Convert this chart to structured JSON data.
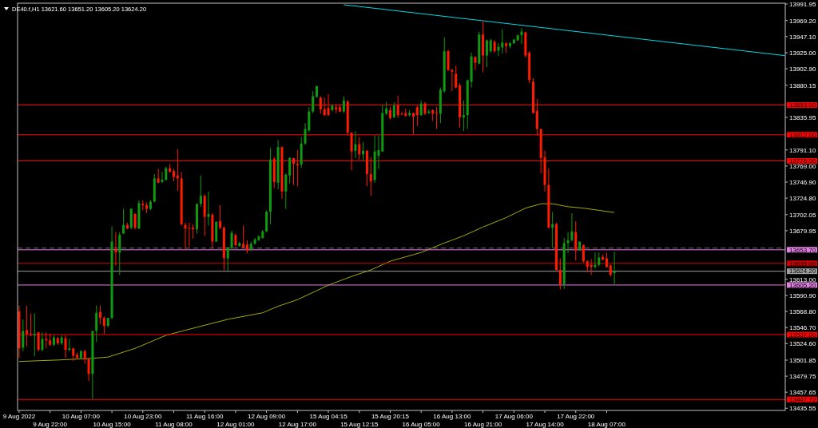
{
  "chart_data": {
    "type": "candlestick",
    "title": "DE40.f,H1  13621.60 13651.20 13605.20 13624.20",
    "categories": [
      "9 Aug 2022",
      null,
      null,
      null,
      null,
      null,
      null,
      null,
      "9 Aug 22:00",
      null,
      null,
      null,
      null,
      null,
      null,
      null,
      "10 Aug 07:00",
      null,
      null,
      null,
      null,
      null,
      null,
      null,
      "10 Aug 15:00",
      null,
      null,
      null,
      null,
      null,
      null,
      null,
      "10 Aug 23:00",
      null,
      null,
      null,
      null,
      null,
      null,
      null,
      "11 Aug 08:00",
      null,
      null,
      null,
      null,
      null,
      null,
      null,
      "11 Aug 16:00",
      null,
      null,
      null,
      null,
      null,
      null,
      null,
      "12 Aug 01:00",
      null,
      null,
      null,
      null,
      null,
      null,
      null,
      "12 Aug 09:00",
      null,
      null,
      null,
      null,
      null,
      null,
      null,
      "12 Aug 17:00",
      null,
      null,
      null,
      null,
      null,
      null,
      null,
      "15 Aug 04:15",
      null,
      null,
      null,
      null,
      null,
      null,
      null,
      "15 Aug 12:15",
      null,
      null,
      null,
      null,
      null,
      null,
      null,
      "15 Aug 20:15",
      null,
      null,
      null,
      null,
      null,
      null,
      null,
      "16 Aug 05:00",
      null,
      null,
      null,
      null,
      null,
      null,
      null,
      "16 Aug 13:00",
      null,
      null,
      null,
      null,
      null,
      null,
      null,
      "16 Aug 21:00",
      null,
      null,
      null,
      null,
      null,
      null,
      null,
      "17 Aug 06:00",
      null,
      null,
      null,
      null,
      null,
      null,
      null,
      "17 Aug 14:00",
      null,
      null,
      null,
      null,
      null,
      null,
      null,
      "17 Aug 22:00",
      null,
      null,
      null,
      null,
      null,
      null,
      null,
      "18 Aug 07:00",
      null,
      null,
      null,
      null,
      null,
      null,
      null,
      null,
      null,
      null,
      null,
      null,
      null,
      null,
      null,
      null,
      null,
      null,
      null,
      null,
      null,
      null,
      null,
      null,
      null,
      null,
      null,
      null,
      null,
      null,
      null,
      null,
      null,
      null,
      null,
      null,
      null,
      null,
      null,
      null,
      null,
      null,
      null,
      null,
      null,
      null
    ],
    "ohlc": [
      [
        13569,
        13577,
        13505,
        13518
      ],
      [
        13519,
        13558,
        13514,
        13542
      ],
      [
        13543,
        13577,
        13521,
        13538
      ],
      [
        13537,
        13566,
        13535,
        13536
      ],
      [
        13536,
        13566,
        13507,
        13538
      ],
      [
        13540,
        13541,
        13514,
        13516
      ],
      [
        13516,
        13540,
        13514,
        13531
      ],
      [
        13531,
        13540,
        13518,
        13529
      ],
      [
        13529,
        13538,
        13521,
        13523
      ],
      [
        13523,
        13536,
        13521,
        13533
      ],
      [
        13532,
        13534,
        13523,
        13525
      ],
      [
        13525,
        13536,
        13523,
        13533
      ],
      [
        13532,
        13536,
        13505,
        13516
      ],
      [
        13516,
        13531,
        13514,
        13518
      ],
      [
        13518,
        13519,
        13501,
        13508
      ],
      [
        13509,
        13512,
        13503,
        13505
      ],
      [
        13505,
        13516,
        13503,
        13514
      ],
      [
        13514,
        13516,
        13497,
        13503
      ],
      [
        13503,
        13505,
        13473,
        13483
      ],
      [
        13483,
        13542,
        13448,
        13542
      ],
      [
        13542,
        13577,
        13527,
        13567
      ],
      [
        13568,
        13577,
        13551,
        13560
      ],
      [
        13560,
        13562,
        13538,
        13549
      ],
      [
        13549,
        13560,
        13547,
        13560
      ],
      [
        13560,
        13686,
        13558,
        13665
      ],
      [
        13654,
        13678,
        13632,
        13650
      ],
      [
        13650,
        13678,
        13619,
        13674
      ],
      [
        13676,
        13710,
        13676,
        13688
      ],
      [
        13688,
        13691,
        13682,
        13683
      ],
      [
        13684,
        13711,
        13682,
        13710
      ],
      [
        13703,
        13704,
        13682,
        13684
      ],
      [
        13683,
        13722,
        13682,
        13718
      ],
      [
        13717,
        13722,
        13708,
        13715
      ],
      [
        13715,
        13719,
        13704,
        13710
      ],
      [
        13710,
        13722,
        13708,
        13720
      ],
      [
        13720,
        13758,
        13719,
        13752
      ],
      [
        13752,
        13765,
        13746,
        13746
      ],
      [
        13747,
        13761,
        13746,
        13750
      ],
      [
        13750,
        13768,
        13749,
        13766
      ],
      [
        13766,
        13772,
        13760,
        13761
      ],
      [
        13762,
        13765,
        13748,
        13754
      ],
      [
        13756,
        13792,
        13735,
        13752
      ],
      [
        13752,
        13761,
        13687,
        13689
      ],
      [
        13688,
        13691,
        13654,
        13683
      ],
      [
        13684,
        13691,
        13658,
        13683
      ],
      [
        13684,
        13689,
        13669,
        13682
      ],
      [
        13682,
        13717,
        13676,
        13717
      ],
      [
        13717,
        13756,
        13713,
        13728
      ],
      [
        13728,
        13730,
        13673,
        13699
      ],
      [
        13699,
        13734,
        13687,
        13703
      ],
      [
        13702,
        13704,
        13656,
        13665
      ],
      [
        13665,
        13693,
        13665,
        13692
      ],
      [
        13693,
        13715,
        13682,
        13684
      ],
      [
        13684,
        13686,
        13626,
        13642
      ],
      [
        13642,
        13658,
        13625,
        13657
      ],
      [
        13656,
        13680,
        13654,
        13677
      ],
      [
        13674,
        13676,
        13658,
        13660
      ],
      [
        13659,
        13665,
        13658,
        13663
      ],
      [
        13662,
        13687,
        13656,
        13657
      ],
      [
        13661,
        13667,
        13649,
        13653
      ],
      [
        13654,
        13665,
        13652,
        13662
      ],
      [
        13662,
        13670,
        13661,
        13668
      ],
      [
        13667,
        13674,
        13666,
        13672
      ],
      [
        13670,
        13681,
        13669,
        13679
      ],
      [
        13679,
        13708,
        13678,
        13706
      ],
      [
        13706,
        13794,
        13689,
        13778
      ],
      [
        13779,
        13781,
        13739,
        13747
      ],
      [
        13746,
        13805,
        13737,
        13795
      ],
      [
        13795,
        13796,
        13724,
        13734
      ],
      [
        13734,
        13759,
        13710,
        13757
      ],
      [
        13756,
        13781,
        13745,
        13780
      ],
      [
        13780,
        13780,
        13743,
        13772
      ],
      [
        13772,
        13791,
        13741,
        13770
      ],
      [
        13771,
        13809,
        13766,
        13800
      ],
      [
        13800,
        13828,
        13798,
        13820
      ],
      [
        13818,
        13850,
        13816,
        13844
      ],
      [
        13844,
        13872,
        13842,
        13865
      ],
      [
        13864,
        13879,
        13864,
        13879
      ],
      [
        13863,
        13865,
        13841,
        13847
      ],
      [
        13847,
        13863,
        13838,
        13839
      ],
      [
        13849,
        13868,
        13838,
        13839
      ],
      [
        13846,
        13854,
        13844,
        13852
      ],
      [
        13850,
        13854,
        13842,
        13847
      ],
      [
        13850,
        13854,
        13843,
        13844
      ],
      [
        13844,
        13865,
        13842,
        13859
      ],
      [
        13858,
        13859,
        13811,
        13815
      ],
      [
        13815,
        13815,
        13763,
        13789
      ],
      [
        13790,
        13817,
        13780,
        13799
      ],
      [
        13799,
        13809,
        13778,
        13785
      ],
      [
        13785,
        13802,
        13776,
        13790
      ],
      [
        13790,
        13791,
        13741,
        13758
      ],
      [
        13758,
        13781,
        13728,
        13748
      ],
      [
        13750,
        13811,
        13746,
        13789
      ],
      [
        13783,
        13811,
        13765,
        13791
      ],
      [
        13789,
        13853,
        13789,
        13842
      ],
      [
        13841,
        13857,
        13839,
        13848
      ],
      [
        13846,
        13850,
        13833,
        13835
      ],
      [
        13836,
        13857,
        13835,
        13852
      ],
      [
        13853,
        13866,
        13835,
        13839
      ],
      [
        13841,
        13844,
        13839,
        13840
      ],
      [
        13842,
        13848,
        13837,
        13838
      ],
      [
        13839,
        13846,
        13837,
        13842
      ],
      [
        13842,
        13842,
        13813,
        13837
      ],
      [
        13850,
        13852,
        13824,
        13839
      ],
      [
        13839,
        13859,
        13838,
        13855
      ],
      [
        13855,
        13857,
        13839,
        13841
      ],
      [
        13842,
        13847,
        13841,
        13844
      ],
      [
        13846,
        13847,
        13831,
        13841
      ],
      [
        13842,
        13850,
        13820,
        13841
      ],
      [
        13841,
        13877,
        13828,
        13874
      ],
      [
        13872,
        13946,
        13870,
        13927
      ],
      [
        13927,
        13929,
        13900,
        13901
      ],
      [
        13901,
        13903,
        13872,
        13899
      ],
      [
        13896,
        13907,
        13876,
        13877
      ],
      [
        13880,
        13883,
        13822,
        13836
      ],
      [
        13836,
        13859,
        13817,
        13839
      ],
      [
        13839,
        13888,
        13820,
        13887
      ],
      [
        13885,
        13925,
        13877,
        13920
      ],
      [
        13919,
        13920,
        13901,
        13911
      ],
      [
        13910,
        13954,
        13909,
        13950
      ],
      [
        13950,
        13968,
        13898,
        13921
      ],
      [
        13921,
        13943,
        13905,
        13942
      ],
      [
        13927,
        13944,
        13925,
        13942
      ],
      [
        13940,
        13942,
        13925,
        13927
      ],
      [
        13928,
        13938,
        13920,
        13933
      ],
      [
        13932,
        13957,
        13924,
        13939
      ],
      [
        13938,
        13939,
        13925,
        13934
      ],
      [
        13934,
        13940,
        13931,
        13938
      ],
      [
        13938,
        13944,
        13937,
        13943
      ],
      [
        13942,
        13950,
        13941,
        13949
      ],
      [
        13949,
        13959,
        13937,
        13954
      ],
      [
        13953,
        13954,
        13918,
        13921
      ],
      [
        13925,
        13927,
        13883,
        13887
      ],
      [
        13885,
        13890,
        13841,
        13842
      ],
      [
        13845,
        13861,
        13811,
        13820
      ],
      [
        13820,
        13820,
        13759,
        13780
      ],
      [
        13781,
        13790,
        13734,
        13743
      ],
      [
        13743,
        13766,
        13683,
        13684
      ],
      [
        13684,
        13706,
        13656,
        13689
      ],
      [
        13689,
        13691,
        13624,
        13626
      ],
      [
        13626,
        13642,
        13599,
        13606
      ],
      [
        13606,
        13670,
        13600,
        13663
      ],
      [
        13663,
        13678,
        13649,
        13667
      ],
      [
        13667,
        13704,
        13665,
        13679
      ],
      [
        13678,
        13693,
        13639,
        13653
      ],
      [
        13654,
        13665,
        13652,
        13665
      ],
      [
        13660,
        13661,
        13636,
        13638
      ],
      [
        13638,
        13639,
        13623,
        13630
      ],
      [
        13633,
        13641,
        13619,
        13630
      ],
      [
        13630,
        13650,
        13628,
        13633
      ],
      [
        13633,
        13650,
        13631,
        13643
      ],
      [
        13644,
        13647,
        13639,
        13640
      ],
      [
        13642,
        13650,
        13629,
        13630
      ],
      [
        13632,
        13634,
        13617,
        13619
      ],
      [
        13621.6,
        13651.2,
        13605.2,
        13624.2
      ],
      null,
      null,
      null,
      null,
      null,
      null,
      null,
      null,
      null,
      null,
      null,
      null,
      null,
      null,
      null,
      null,
      null,
      null,
      null,
      null,
      null,
      null,
      null,
      null,
      null,
      null,
      null,
      null,
      null,
      null,
      null,
      null,
      null,
      null,
      null,
      null,
      null,
      null,
      null,
      null,
      null,
      null,
      null,
      null
    ],
    "series": [
      {
        "type": "line",
        "color": "#a8a800",
        "values": [
          13500,
          null,
          null,
          null,
          null,
          null,
          null,
          null,
          null,
          null,
          13502,
          null,
          null,
          null,
          null,
          null,
          null,
          null,
          13504,
          null,
          null,
          null,
          null,
          13506,
          null,
          null,
          null,
          null,
          null,
          null,
          13518,
          null,
          null,
          null,
          null,
          null,
          null,
          null,
          13536,
          null,
          null,
          null,
          null,
          13543,
          null,
          null,
          null,
          null,
          null,
          null,
          null,
          null,
          null,
          null,
          13558,
          null,
          null,
          null,
          null,
          null,
          null,
          null,
          null,
          13567,
          null,
          null,
          null,
          13576,
          null,
          null,
          null,
          null,
          13585,
          null,
          null,
          null,
          null,
          null,
          null,
          null,
          13605,
          null,
          null,
          null,
          null,
          null,
          13617,
          null,
          null,
          null,
          null,
          13626,
          null,
          null,
          null,
          null,
          13638,
          null,
          null,
          null,
          null,
          null,
          null,
          null,
          13650,
          null,
          null,
          null,
          null,
          null,
          13663,
          null,
          null,
          null,
          null,
          13673,
          null,
          null,
          null,
          null,
          13685,
          null,
          null,
          null,
          null,
          null,
          13698,
          null,
          null,
          null,
          null,
          13711,
          null,
          null,
          null,
          13717,
          null,
          null,
          13717,
          null,
          null,
          null,
          13713,
          null,
          null,
          null,
          13711,
          null,
          null,
          null,
          13708,
          null,
          null,
          null,
          13705,
          null,
          null,
          null,
          null,
          null,
          null,
          null,
          null,
          null,
          null,
          null,
          null,
          null,
          null,
          null,
          null,
          null,
          null,
          null,
          null,
          null,
          null,
          null,
          null,
          null,
          null,
          null,
          null,
          null,
          null,
          null,
          null,
          null,
          null,
          null,
          null,
          null,
          null,
          null,
          null,
          null,
          null,
          null,
          null
        ]
      },
      {
        "type": "line",
        "color": "#00d8e0",
        "values": [
          null,
          null,
          null,
          null,
          null,
          null,
          null,
          null,
          null,
          null,
          null,
          null,
          null,
          null,
          null,
          null,
          null,
          null,
          null,
          null,
          null,
          null,
          null,
          null,
          null,
          null,
          null,
          null,
          null,
          null,
          null,
          null,
          null,
          null,
          null,
          null,
          null,
          null,
          null,
          null,
          null,
          null,
          null,
          null,
          null,
          null,
          null,
          null,
          null,
          null,
          null,
          null,
          null,
          null,
          null,
          null,
          null,
          null,
          null,
          null,
          null,
          null,
          null,
          null,
          null,
          null,
          null,
          null,
          null,
          null,
          null,
          null,
          null,
          null,
          null,
          null,
          null,
          null,
          null,
          null,
          null,
          null,
          null,
          null,
          13991,
          null,
          null,
          null,
          null,
          null,
          null,
          null,
          null,
          null,
          null,
          null,
          null,
          null,
          null,
          null,
          null,
          null,
          null,
          null,
          null,
          null,
          null,
          null,
          null,
          null,
          null,
          null,
          null,
          null,
          null,
          null,
          null,
          null,
          null,
          null,
          null,
          null,
          null,
          null,
          null,
          null,
          null,
          null,
          null,
          null,
          null,
          null,
          null,
          null,
          null,
          null,
          null,
          null,
          null,
          null,
          null,
          null,
          null,
          null,
          null,
          null,
          null,
          null,
          null,
          null,
          null,
          null,
          null,
          null,
          null,
          null,
          null,
          null,
          null,
          null,
          null,
          null,
          null,
          null,
          null,
          null,
          null,
          null,
          null,
          null,
          null,
          null,
          null,
          null,
          null,
          null,
          null,
          null,
          null,
          null,
          null,
          null,
          null,
          null,
          null,
          null,
          null,
          null,
          null,
          null,
          null,
          null,
          null,
          null,
          null,
          null,
          null,
          null,
          13921
        ]
      }
    ],
    "ylim": [
      13432.6,
      13993.1
    ],
    "yticks": [
      {
        "value": 13991.95,
        "label": "13991.95"
      },
      {
        "value": 13969.2,
        "label": "13969.20"
      },
      {
        "value": 13947.1,
        "label": "13947.10"
      },
      {
        "value": 13925,
        "label": "13925.00"
      },
      {
        "value": 13902.9,
        "label": "13902.90"
      },
      {
        "value": 13880.15,
        "label": "13880.15"
      },
      {
        "value": 13835.95,
        "label": "13835.95"
      },
      {
        "value": 13791.1,
        "label": "13791.10"
      },
      {
        "value": 13769,
        "label": "13769.00"
      },
      {
        "value": 13746.9,
        "label": "13746.90"
      },
      {
        "value": 13724.8,
        "label": "13724.80"
      },
      {
        "value": 13702.05,
        "label": "13702.05"
      },
      {
        "value": 13679.95,
        "label": "13679.95"
      },
      {
        "value": 13613,
        "label": "13613.00"
      },
      {
        "value": 13590.9,
        "label": "13590.90"
      },
      {
        "value": 13568.8,
        "label": "13568.80"
      },
      {
        "value": 13546.7,
        "label": "13546.70"
      },
      {
        "value": 13524.6,
        "label": "13524.60"
      },
      {
        "value": 13501.85,
        "label": "13501.85"
      },
      {
        "value": 13479.75,
        "label": "13479.75"
      },
      {
        "value": 13457.65,
        "label": "13457.65"
      },
      {
        "value": 13435.55,
        "label": "13435.55"
      }
    ],
    "ref_lines": [
      {
        "axis": "y",
        "value": 13853,
        "label": "13853.00",
        "color": "#ff0000"
      },
      {
        "axis": "y",
        "value": 13812,
        "label": "13812.00",
        "color": "#ff0000"
      },
      {
        "axis": "y",
        "value": 13776,
        "label": "13776.00",
        "color": "#ff0000"
      },
      {
        "axis": "y",
        "value": 13656,
        "color": "#806080",
        "line_style": "dashed"
      },
      {
        "axis": "y",
        "value": 13653.7,
        "label": "13653.70",
        "color": "#e080e0"
      },
      {
        "axis": "y",
        "value": 13635,
        "label": "13635.00",
        "color": "#d00000"
      },
      {
        "axis": "y",
        "value": 13624.2,
        "label": "13624.20",
        "color": "#a0a0a0"
      },
      {
        "axis": "y",
        "value": 13605.2,
        "label": "13605.20",
        "color": "#e080e0"
      },
      {
        "axis": "y",
        "value": 13537,
        "label": "13537.00",
        "color": "#ff0000"
      },
      {
        "axis": "y",
        "value": 13447.72,
        "label": "13447.72",
        "color": "#ff0000"
      }
    ]
  }
}
